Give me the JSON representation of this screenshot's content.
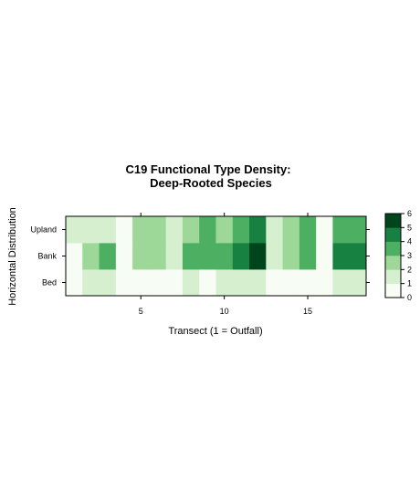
{
  "chart_data": {
    "type": "heatmap",
    "title_line1": "C19 Functional Type Density:",
    "title_line2": "Deep-Rooted Species",
    "xlabel": "Transect (1 = Outfall)",
    "ylabel": "Horizontal Distribution",
    "x_range": [
      1,
      18
    ],
    "x_ticks": [
      5,
      10,
      15
    ],
    "y_categories": [
      "Bed",
      "Bank",
      "Upland"
    ],
    "colorbar": {
      "range": [
        0,
        6
      ],
      "ticks": [
        0,
        1,
        2,
        3,
        4,
        5,
        6
      ],
      "colors": [
        "#f7fcf5",
        "#d5efcf",
        "#9ed898",
        "#4daf62",
        "#178142",
        "#00441b"
      ]
    },
    "series": [
      {
        "category": "Bed",
        "values": [
          0.5,
          1.5,
          1.5,
          0.5,
          0.5,
          0.5,
          0.5,
          1.5,
          0.5,
          1.5,
          1.5,
          1.5,
          0.5,
          0.5,
          0.5,
          0.5,
          1.5,
          1.5
        ]
      },
      {
        "category": "Bank",
        "values": [
          0.5,
          2.5,
          3.5,
          0.5,
          2.5,
          2.5,
          1.5,
          3.5,
          3.5,
          3.5,
          4.5,
          5.5,
          1.5,
          2.5,
          3.5,
          0.5,
          4.5,
          4.5
        ]
      },
      {
        "category": "Upland",
        "values": [
          1.5,
          1.5,
          1.5,
          0.5,
          2.5,
          2.5,
          1.5,
          2.5,
          3.5,
          2.5,
          3.5,
          4.5,
          1.5,
          2.5,
          3.5,
          0.5,
          3.5,
          3.5
        ]
      }
    ]
  }
}
